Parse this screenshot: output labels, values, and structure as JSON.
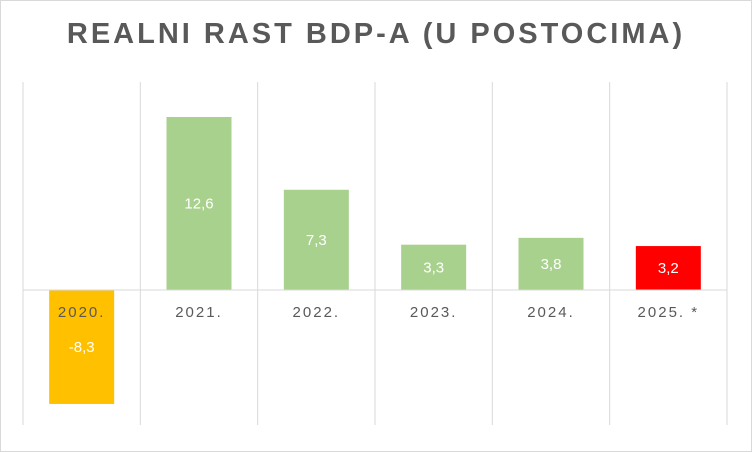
{
  "chart_data": {
    "type": "bar",
    "title": "REALNI RAST BDP-A (U POSTOCIMA)",
    "categories": [
      "2020.",
      "2021.",
      "2022.",
      "2023.",
      "2024.",
      "2025. *"
    ],
    "values": [
      -8.3,
      12.6,
      7.3,
      3.3,
      3.8,
      3.2
    ],
    "value_labels": [
      "-8,3",
      "12,6",
      "7,3",
      "3,3",
      "3,8",
      "3,2"
    ],
    "colors": [
      "#ffc000",
      "#a9d18e",
      "#a9d18e",
      "#a9d18e",
      "#a9d18e",
      "#ff0000"
    ],
    "xlabel": "",
    "ylabel": "",
    "ylim": [
      -10,
      15
    ],
    "grid": "vertical",
    "legend": "none"
  }
}
